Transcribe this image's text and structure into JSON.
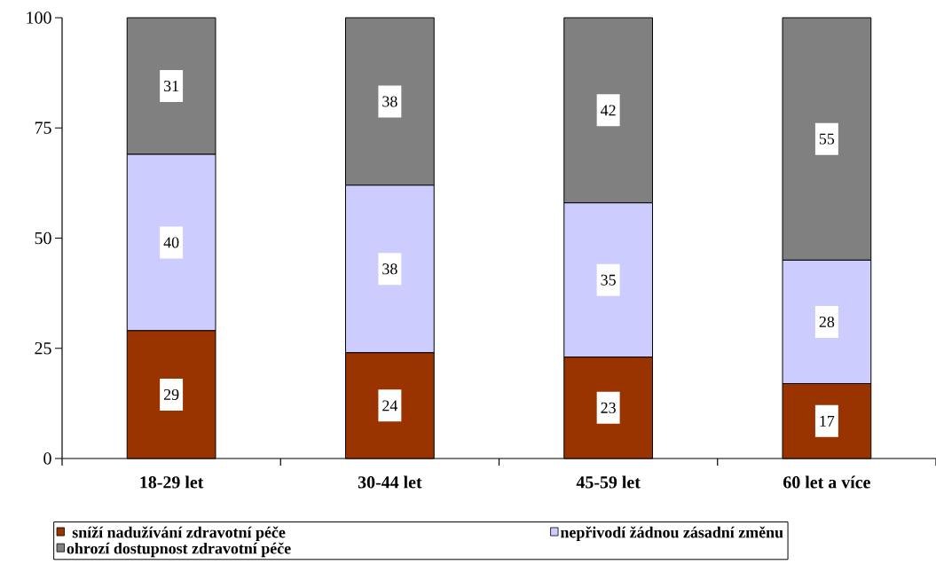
{
  "chart_data": {
    "type": "bar",
    "stacked": true,
    "categories": [
      "18-29 let",
      "30-44 let",
      "45-59 let",
      "60 let a více"
    ],
    "series": [
      {
        "name": "sníží nadužívání zdravotní péče",
        "color": "#993300",
        "values": [
          29,
          24,
          23,
          17
        ]
      },
      {
        "name": "nepřivodí žádnou zásadní změnu",
        "color": "#ccccff",
        "values": [
          40,
          38,
          35,
          28
        ]
      },
      {
        "name": "ohrozí dostupnost zdravotní péče",
        "color": "#808080",
        "values": [
          31,
          38,
          42,
          55
        ]
      }
    ],
    "ylim": [
      0,
      100
    ],
    "yticks": [
      0,
      25,
      50,
      75,
      100
    ],
    "grid": false,
    "legend": "bottom",
    "data_labels": true
  }
}
